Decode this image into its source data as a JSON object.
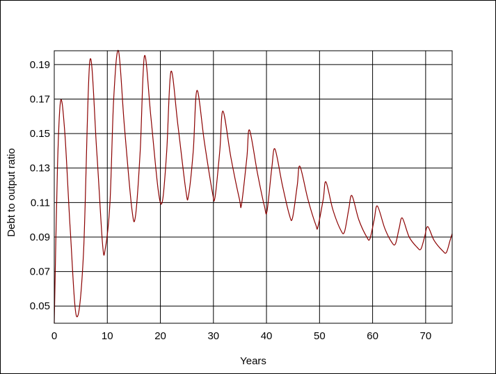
{
  "chart_data": {
    "type": "line",
    "title": "",
    "xlabel": "Years",
    "ylabel": "Debt to output ratio",
    "xlim": [
      0,
      75
    ],
    "ylim": [
      0.04,
      0.198
    ],
    "x_ticks": [
      0,
      10,
      20,
      30,
      40,
      50,
      60,
      70
    ],
    "y_ticks": [
      0.05,
      0.07,
      0.09,
      0.11,
      0.13,
      0.15,
      0.17,
      0.19
    ],
    "x_tick_labels": [
      "0",
      "10",
      "20",
      "30",
      "40",
      "50",
      "60",
      "70"
    ],
    "y_tick_labels": [
      "0.05",
      "0.07",
      "0.09",
      "0.11",
      "0.13",
      "0.15",
      "0.17",
      "0.19"
    ],
    "grid": true,
    "legend": "none",
    "line_color": "#8b0000",
    "grid_color": "#000000",
    "series": [
      {
        "x": [
          0,
          0.6,
          1.2,
          2.0,
          3.0,
          4.2,
          5.5,
          6.7,
          8.0,
          9.1,
          9.6,
          10.5,
          11.2,
          12.1,
          13.2,
          14.6,
          15.3,
          16.2,
          17.0,
          18.2,
          19.6,
          20.4,
          21.2,
          22.0,
          23.3,
          24.8,
          25.3,
          26.2,
          26.9,
          28.3,
          29.8,
          30.3,
          31.2,
          31.8,
          33.3,
          34.9,
          35.3,
          36.3,
          36.8,
          38.3,
          39.6,
          40.1,
          41.0,
          41.6,
          43.0,
          44.3,
          44.9,
          45.8,
          46.3,
          47.8,
          49.3,
          49.7,
          50.7,
          51.2,
          52.5,
          54.0,
          54.7,
          55.5,
          56.1,
          57.4,
          58.9,
          59.5,
          60.3,
          60.9,
          62.3,
          63.6,
          64.3,
          65.0,
          65.6,
          66.9,
          68.4,
          69.1,
          69.8,
          70.4,
          71.6,
          73.2,
          73.9,
          74.6,
          75.0
        ],
        "y": [
          0.04,
          0.13,
          0.169,
          0.15,
          0.095,
          0.044,
          0.08,
          0.192,
          0.14,
          0.086,
          0.083,
          0.11,
          0.17,
          0.198,
          0.155,
          0.107,
          0.102,
          0.14,
          0.195,
          0.16,
          0.117,
          0.111,
          0.14,
          0.186,
          0.155,
          0.117,
          0.114,
          0.14,
          0.175,
          0.145,
          0.116,
          0.113,
          0.14,
          0.163,
          0.136,
          0.112,
          0.109,
          0.136,
          0.152,
          0.127,
          0.108,
          0.105,
          0.13,
          0.141,
          0.12,
          0.103,
          0.101,
          0.12,
          0.131,
          0.112,
          0.097,
          0.096,
          0.112,
          0.122,
          0.106,
          0.094,
          0.093,
          0.106,
          0.114,
          0.1,
          0.09,
          0.089,
          0.1,
          0.108,
          0.095,
          0.087,
          0.086,
          0.095,
          0.101,
          0.09,
          0.084,
          0.083,
          0.09,
          0.096,
          0.088,
          0.082,
          0.081,
          0.088,
          0.092
        ]
      }
    ]
  }
}
